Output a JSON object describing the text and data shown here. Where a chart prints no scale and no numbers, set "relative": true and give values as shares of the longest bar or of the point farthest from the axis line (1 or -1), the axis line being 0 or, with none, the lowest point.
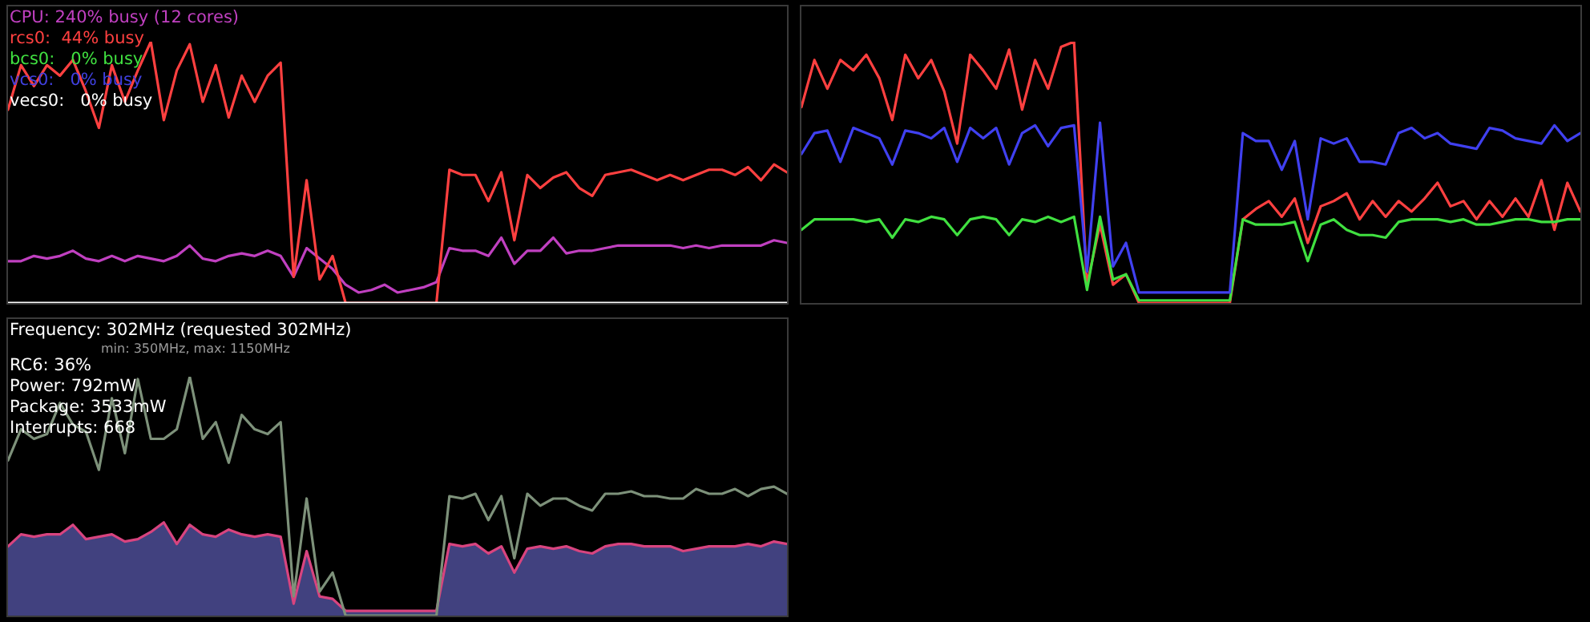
{
  "chart_data": [
    {
      "type": "line",
      "relative": true,
      "legend": "top left",
      "categories": [
        null,
        null,
        null,
        null,
        null,
        null,
        null,
        null,
        null,
        null,
        null,
        null,
        null,
        null,
        null,
        null,
        null,
        null,
        null,
        null,
        null,
        null,
        null,
        null,
        null,
        null,
        null,
        null,
        null,
        null,
        null,
        null,
        null,
        null,
        null,
        null,
        null,
        null,
        null,
        null,
        null,
        null,
        null,
        null,
        null,
        null,
        null,
        null,
        null,
        null,
        null,
        null,
        null,
        null,
        null,
        null,
        null,
        null,
        null,
        null,
        null
      ],
      "series": [
        {
          "name": "CPU: 240% busy (12 cores)",
          "color": "#c040c0",
          "values": [
            0.16,
            0.16,
            0.18,
            0.17,
            0.18,
            0.2,
            0.17,
            0.16,
            0.18,
            0.16,
            0.18,
            0.17,
            0.16,
            0.18,
            0.22,
            0.17,
            0.16,
            0.18,
            0.19,
            0.18,
            0.2,
            0.18,
            0.1,
            0.21,
            0.17,
            0.13,
            0.07,
            0.04,
            0.05,
            0.07,
            0.04,
            0.05,
            0.06,
            0.08,
            0.21,
            0.2,
            0.2,
            0.18,
            0.25,
            0.15,
            0.2,
            0.2,
            0.25,
            0.19,
            0.2,
            0.2,
            0.21,
            0.22,
            0.22,
            0.22,
            0.22,
            0.22,
            0.21,
            0.22,
            0.21,
            0.22,
            0.22,
            0.22,
            0.22,
            0.24,
            0.23
          ]
        },
        {
          "name": "rcs0:  44% busy",
          "color": "#ff4040",
          "values": [
            0.74,
            0.91,
            0.83,
            0.91,
            0.87,
            0.93,
            0.81,
            0.67,
            0.91,
            0.77,
            0.89,
            1.0,
            0.7,
            0.89,
            0.99,
            0.77,
            0.91,
            0.71,
            0.87,
            0.77,
            0.87,
            0.92,
            0.1,
            0.47,
            0.09,
            0.18,
            0,
            0,
            0,
            0,
            0,
            0,
            0,
            0,
            0.51,
            0.49,
            0.49,
            0.39,
            0.5,
            0.24,
            0.49,
            0.44,
            0.48,
            0.5,
            0.44,
            0.41,
            0.49,
            0.5,
            0.51,
            0.49,
            0.47,
            0.49,
            0.47,
            0.49,
            0.51,
            0.51,
            0.49,
            0.52,
            0.47,
            0.53,
            0.5
          ]
        },
        {
          "name": "bcs0:   0% busy",
          "color": "#40e040",
          "values": [
            null,
            null,
            null,
            null,
            null,
            null,
            null,
            null,
            null,
            null,
            null,
            null,
            null,
            null,
            null,
            null,
            null,
            null,
            null,
            null,
            null,
            null,
            null,
            null,
            null,
            null,
            null,
            null,
            null,
            null,
            null,
            null,
            null,
            null,
            null,
            null,
            null,
            null,
            null,
            null,
            null,
            null,
            null,
            null,
            null,
            null,
            null,
            null,
            null,
            null,
            null,
            null,
            null,
            null,
            null,
            null,
            null,
            null,
            null,
            null,
            null
          ]
        },
        {
          "name": "vcs0:   0% busy",
          "color": "#4040e0",
          "values": [
            null,
            null,
            null,
            null,
            null,
            null,
            null,
            null,
            null,
            null,
            null,
            null,
            null,
            null,
            null,
            null,
            null,
            null,
            null,
            null,
            null,
            null,
            null,
            null,
            null,
            null,
            null,
            null,
            null,
            null,
            null,
            null,
            null,
            null,
            null,
            null,
            null,
            null,
            null,
            null,
            null,
            null,
            null,
            null,
            null,
            null,
            null,
            null,
            null,
            null,
            null,
            null,
            null,
            null,
            null,
            null,
            null,
            null,
            null,
            null,
            null
          ]
        },
        {
          "name": "vecs0:   0% busy",
          "color": "#ffffff",
          "values": [
            0,
            0,
            0,
            0,
            0,
            0,
            0,
            0,
            0,
            0,
            0,
            0,
            0,
            0,
            0,
            0,
            0,
            0,
            0,
            0,
            0,
            0,
            0,
            0,
            0,
            0,
            0,
            0,
            0,
            0,
            0,
            0,
            0,
            0,
            0,
            0,
            0,
            0,
            0,
            0,
            0,
            0,
            0,
            0,
            0,
            0,
            0,
            0,
            0,
            0,
            0,
            0,
            0,
            0,
            0,
            0,
            0,
            0,
            0,
            0,
            0
          ]
        }
      ]
    },
    {
      "type": "line",
      "relative": true,
      "categories": [
        null,
        null,
        null,
        null,
        null,
        null,
        null,
        null,
        null,
        null,
        null,
        null,
        null,
        null,
        null,
        null,
        null,
        null,
        null,
        null,
        null,
        null,
        null,
        null,
        null,
        null,
        null,
        null,
        null,
        null,
        null,
        null,
        null,
        null,
        null,
        null,
        null,
        null,
        null,
        null,
        null,
        null,
        null,
        null,
        null,
        null,
        null,
        null,
        null,
        null,
        null,
        null,
        null,
        null,
        null,
        null,
        null,
        null,
        null,
        null,
        null
      ],
      "series": [
        {
          "color": "#ff4040",
          "values": [
            0.75,
            0.93,
            0.82,
            0.93,
            0.89,
            0.95,
            0.86,
            0.7,
            0.95,
            0.86,
            0.93,
            0.81,
            0.61,
            0.95,
            0.89,
            0.82,
            0.97,
            0.74,
            0.93,
            0.82,
            0.98,
            1.0,
            0.07,
            0.3,
            0.07,
            0.11,
            0,
            0,
            0,
            0,
            0,
            0,
            0,
            0,
            0.32,
            0.36,
            0.39,
            0.33,
            0.4,
            0.23,
            0.37,
            0.39,
            0.42,
            0.32,
            0.39,
            0.33,
            0.39,
            0.35,
            0.4,
            0.46,
            0.37,
            0.39,
            0.32,
            0.39,
            0.33,
            0.4,
            0.33,
            0.47,
            0.28,
            0.46,
            0.35
          ]
        },
        {
          "color": "#40e040",
          "values": [
            0.28,
            0.32,
            0.32,
            0.32,
            0.32,
            0.31,
            0.32,
            0.25,
            0.32,
            0.31,
            0.33,
            0.32,
            0.26,
            0.32,
            0.33,
            0.32,
            0.26,
            0.32,
            0.31,
            0.33,
            0.31,
            0.33,
            0.05,
            0.33,
            0.09,
            0.11,
            0.01,
            0.01,
            0.01,
            0.01,
            0.01,
            0.01,
            0.01,
            0.01,
            0.32,
            0.3,
            0.3,
            0.3,
            0.31,
            0.16,
            0.3,
            0.32,
            0.28,
            0.26,
            0.26,
            0.25,
            0.31,
            0.32,
            0.32,
            0.32,
            0.31,
            0.32,
            0.3,
            0.3,
            0.31,
            0.32,
            0.32,
            0.31,
            0.31,
            0.32,
            0.32
          ]
        },
        {
          "color": "#4040f0",
          "values": [
            0.57,
            0.65,
            0.66,
            0.54,
            0.67,
            0.65,
            0.63,
            0.53,
            0.66,
            0.65,
            0.63,
            0.67,
            0.54,
            0.67,
            0.63,
            0.67,
            0.53,
            0.65,
            0.68,
            0.6,
            0.67,
            0.68,
            0.12,
            0.69,
            0.14,
            0.23,
            0.04,
            0.04,
            0.04,
            0.04,
            0.04,
            0.04,
            0.04,
            0.04,
            0.65,
            0.62,
            0.62,
            0.51,
            0.62,
            0.32,
            0.63,
            0.61,
            0.63,
            0.54,
            0.54,
            0.53,
            0.65,
            0.67,
            0.63,
            0.65,
            0.61,
            0.6,
            0.59,
            0.67,
            0.66,
            0.63,
            0.62,
            0.61,
            0.68,
            0.62,
            0.65
          ]
        }
      ]
    },
    {
      "type": "line",
      "relative": true,
      "annotations": [
        "Frequency: 302MHz (requested 302MHz)",
        "min: 350MHz, max: 1150MHz",
        "RC6: 36%",
        "Power: 792mW",
        "Package: 3533mW",
        "Interrupts: 668"
      ],
      "categories": [
        null,
        null,
        null,
        null,
        null,
        null,
        null,
        null,
        null,
        null,
        null,
        null,
        null,
        null,
        null,
        null,
        null,
        null,
        null,
        null,
        null,
        null,
        null,
        null,
        null,
        null,
        null,
        null,
        null,
        null,
        null,
        null,
        null,
        null,
        null,
        null,
        null,
        null,
        null,
        null,
        null,
        null,
        null,
        null,
        null,
        null,
        null,
        null,
        null,
        null,
        null,
        null,
        null,
        null,
        null,
        null,
        null,
        null,
        null,
        null,
        null
      ],
      "series": [
        {
          "type": "area",
          "color": "#41417f",
          "values": [
            0.29,
            0.34,
            0.33,
            0.34,
            0.34,
            0.38,
            0.32,
            0.33,
            0.34,
            0.31,
            0.32,
            0.35,
            0.39,
            0.3,
            0.38,
            0.34,
            0.33,
            0.36,
            0.34,
            0.33,
            0.34,
            0.33,
            0.05,
            0.27,
            0.08,
            0.07,
            0.02,
            0.02,
            0.02,
            0.02,
            0.02,
            0.02,
            0.02,
            0.02,
            0.3,
            0.29,
            0.3,
            0.26,
            0.29,
            0.18,
            0.28,
            0.29,
            0.28,
            0.29,
            0.27,
            0.26,
            0.29,
            0.3,
            0.3,
            0.29,
            0.29,
            0.29,
            0.27,
            0.28,
            0.29,
            0.29,
            0.29,
            0.3,
            0.29,
            0.31,
            0.3
          ]
        },
        {
          "color": "#d8447f",
          "values": [
            0.29,
            0.34,
            0.33,
            0.34,
            0.34,
            0.38,
            0.32,
            0.33,
            0.34,
            0.31,
            0.32,
            0.35,
            0.39,
            0.3,
            0.38,
            0.34,
            0.33,
            0.36,
            0.34,
            0.33,
            0.34,
            0.33,
            0.05,
            0.27,
            0.08,
            0.07,
            0.02,
            0.02,
            0.02,
            0.02,
            0.02,
            0.02,
            0.02,
            0.02,
            0.3,
            0.29,
            0.3,
            0.26,
            0.29,
            0.18,
            0.28,
            0.29,
            0.28,
            0.29,
            0.27,
            0.26,
            0.29,
            0.3,
            0.3,
            0.29,
            0.29,
            0.29,
            0.27,
            0.28,
            0.29,
            0.29,
            0.29,
            0.3,
            0.29,
            0.31,
            0.3
          ]
        },
        {
          "color": "#7d917a",
          "values": [
            0.65,
            0.78,
            0.74,
            0.76,
            0.89,
            0.8,
            0.77,
            0.61,
            0.91,
            0.68,
            0.99,
            0.74,
            0.74,
            0.78,
            1.0,
            0.74,
            0.81,
            0.64,
            0.84,
            0.78,
            0.76,
            0.81,
            0.08,
            0.49,
            0.1,
            0.18,
            0,
            0,
            0,
            0,
            0,
            0,
            0,
            0,
            0.5,
            0.49,
            0.51,
            0.4,
            0.5,
            0.24,
            0.51,
            0.46,
            0.49,
            0.49,
            0.46,
            0.44,
            0.51,
            0.51,
            0.52,
            0.5,
            0.5,
            0.49,
            0.49,
            0.53,
            0.51,
            0.51,
            0.53,
            0.5,
            0.53,
            0.54,
            0.51
          ]
        }
      ]
    }
  ]
}
